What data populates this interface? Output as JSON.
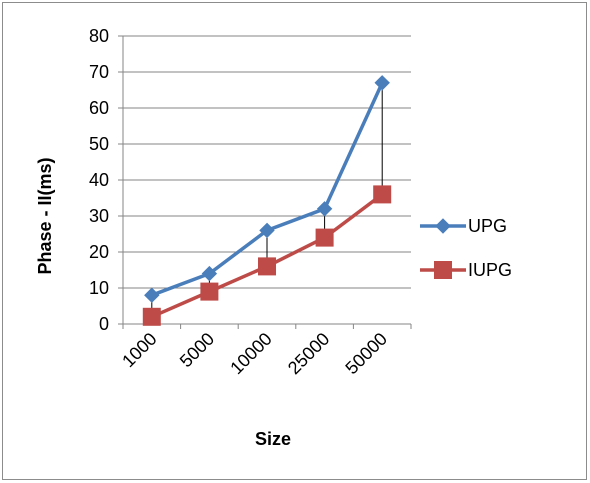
{
  "chart_data": {
    "type": "line",
    "categories": [
      "1000",
      "5000",
      "10000",
      "25000",
      "50000"
    ],
    "series": [
      {
        "name": "UPG",
        "values": [
          8,
          14,
          26,
          32,
          67
        ],
        "color": "#4a7ebb",
        "marker": "diamond"
      },
      {
        "name": "IUPG",
        "values": [
          2,
          9,
          16,
          24,
          36
        ],
        "color": "#be4b48",
        "marker": "square"
      }
    ],
    "high_low_lines": true,
    "xlabel": "Size",
    "ylabel": "Phase - II(ms)",
    "ylim": [
      0,
      80
    ],
    "yticks": [
      "0",
      "10",
      "20",
      "30",
      "40",
      "50",
      "60",
      "70",
      "80"
    ],
    "grid": true,
    "legend_position": "right"
  }
}
